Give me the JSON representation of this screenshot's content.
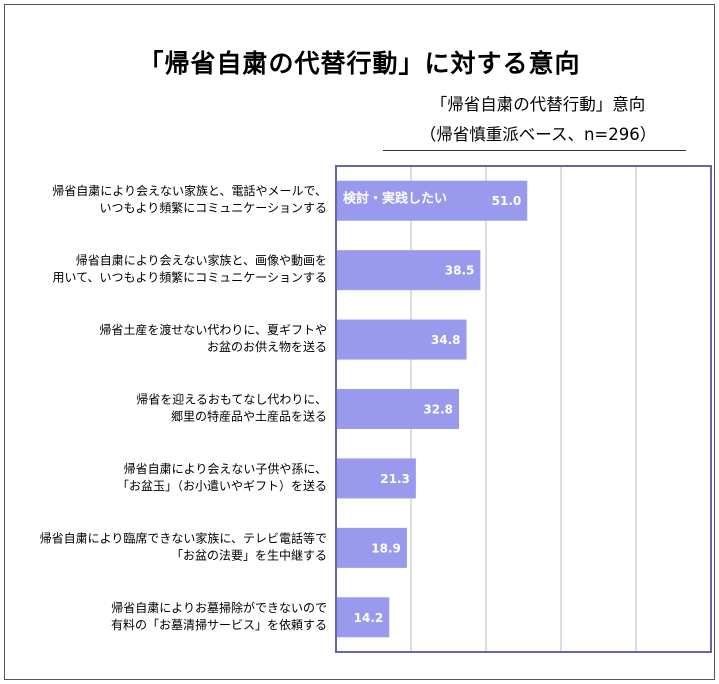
{
  "chart_data": {
    "type": "bar",
    "orientation": "horizontal",
    "title": "「帰省自粛の代替行動」に対する意向",
    "subtitle_lines": [
      "「帰省自粛の代替行動」意向",
      "（帰省慎重派ベース、n=296）"
    ],
    "categories": [
      [
        "帰省自粛により会えない家族と、電話やメールで、",
        "いつもより頻繁にコミュニケーションする"
      ],
      [
        "帰省自粛により会えない家族と、画像や動画を",
        "用いて、いつもより頻繁にコミュニケーションする"
      ],
      [
        "帰省土産を渡せない代わりに、夏ギフトや",
        "お盆のお供え物を送る"
      ],
      [
        "帰省を迎えるおもてなし代わりに、",
        "郷里の特産品や土産品を送る"
      ],
      [
        "帰省自粛により会えない子供や孫に、",
        "「お盆玉」（お小遣いやギフト）を送る"
      ],
      [
        "帰省自粛により臨席できない家族に、テレビ電話等で",
        "「お盆の法要」を生中継する"
      ],
      [
        "帰省自粛によりお墓掃除ができないので",
        "有料の「お墓清掃サービス」を依頼する"
      ]
    ],
    "series": [
      {
        "name": "検討・実践したい",
        "values": [
          51.0,
          38.5,
          34.8,
          32.8,
          21.3,
          18.9,
          14.2
        ]
      }
    ],
    "value_labels": [
      "51.0",
      "38.5",
      "34.8",
      "32.8",
      "21.3",
      "18.9",
      "14.2"
    ],
    "xlim": [
      0,
      100
    ],
    "grid": true,
    "legend": "inside-first-bar",
    "colors": {
      "bar": "#9999ee",
      "plot_border": "#6666aa",
      "grid": "#bbbbbb",
      "bar_label": "#ffffff"
    }
  }
}
